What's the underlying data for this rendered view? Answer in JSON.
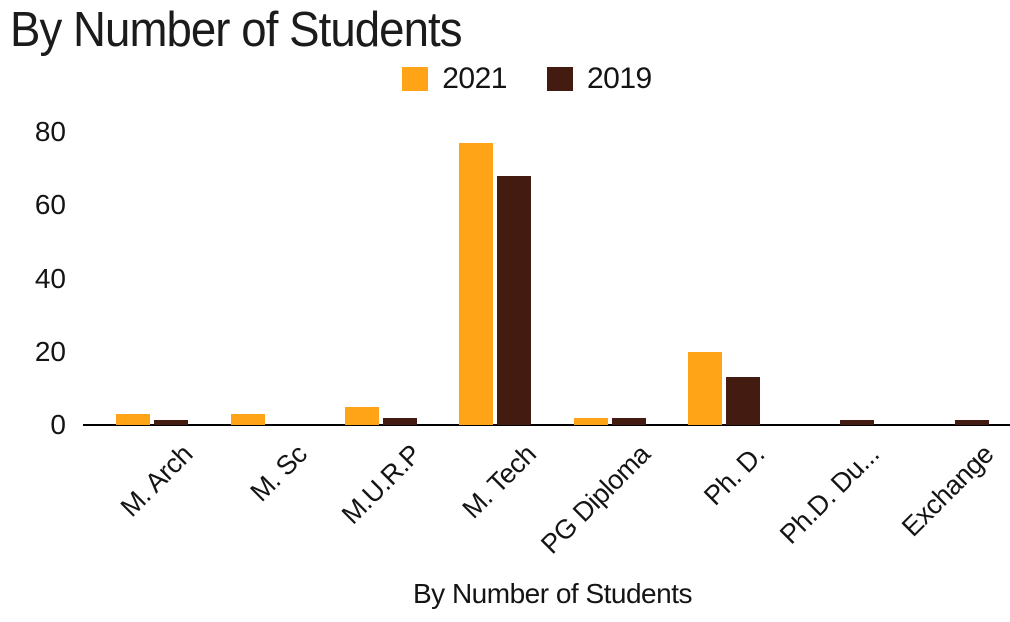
{
  "title": "By Number of Students",
  "legend": {
    "items": [
      {
        "label": "2021",
        "color": "#FFA317"
      },
      {
        "label": "2019",
        "color": "#441B10"
      }
    ]
  },
  "chart_data": {
    "type": "bar",
    "title": "By Number of Students",
    "xlabel": "By Number of Students",
    "ylabel": "",
    "categories": [
      "M. Arch",
      "M. Sc",
      "M.U.R.P",
      "M. Tech",
      "PG Diploma",
      "Ph. D.",
      "Ph.D. Du...",
      "Exchange"
    ],
    "series": [
      {
        "name": "2021",
        "color": "#FFA317",
        "values": [
          3,
          3,
          5,
          77,
          2,
          20,
          0,
          0
        ]
      },
      {
        "name": "2019",
        "color": "#441B10",
        "values": [
          1.5,
          0,
          2,
          68,
          2,
          13,
          1.5,
          1.5
        ]
      }
    ],
    "y_ticks": [
      0,
      20,
      40,
      60,
      80
    ],
    "ylim": [
      0,
      80
    ],
    "grid": false,
    "legend_position": "top-center",
    "x_tick_rotation_deg": -45
  }
}
